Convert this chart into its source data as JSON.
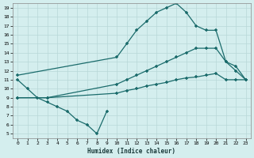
{
  "xlabel": "Humidex (Indice chaleur)",
  "bg_color": "#d4eeee",
  "grid_color": "#b8d8d8",
  "line_color": "#1a6b6b",
  "marker": "+",
  "xlim": [
    -0.5,
    23.5
  ],
  "ylim": [
    4.5,
    19.5
  ],
  "xticks": [
    0,
    1,
    2,
    3,
    4,
    5,
    6,
    7,
    8,
    9,
    10,
    11,
    12,
    13,
    14,
    15,
    16,
    17,
    18,
    19,
    20,
    21,
    22,
    23
  ],
  "yticks": [
    5,
    6,
    7,
    8,
    9,
    10,
    11,
    12,
    13,
    14,
    15,
    16,
    17,
    18,
    19
  ],
  "s1_x": [
    0,
    1,
    2,
    3,
    4,
    5,
    6,
    7,
    8,
    9
  ],
  "s1_y": [
    11.0,
    10.0,
    9.0,
    8.5,
    8.0,
    7.5,
    6.5,
    6.0,
    5.0,
    7.5
  ],
  "s2_x": [
    0,
    10,
    11,
    12,
    13,
    14,
    15,
    16,
    17,
    18,
    19,
    20,
    21,
    22,
    23
  ],
  "s2_y": [
    11.5,
    13.5,
    15.0,
    16.5,
    17.5,
    18.5,
    19.0,
    19.5,
    18.5,
    17.0,
    16.5,
    16.5,
    13.0,
    12.0,
    11.0
  ],
  "s3_x": [
    0,
    3,
    10,
    11,
    12,
    13,
    14,
    15,
    16,
    17,
    18,
    19,
    20,
    21,
    22,
    23
  ],
  "s3_y": [
    9.0,
    9.0,
    10.5,
    11.0,
    11.5,
    12.0,
    12.5,
    13.0,
    13.5,
    14.0,
    14.5,
    14.5,
    14.5,
    13.0,
    12.5,
    11.0
  ],
  "s4_x": [
    0,
    3,
    10,
    11,
    12,
    13,
    14,
    15,
    16,
    17,
    18,
    19,
    20,
    21,
    22,
    23
  ],
  "s4_y": [
    9.0,
    9.0,
    9.5,
    9.8,
    10.0,
    10.3,
    10.5,
    10.7,
    11.0,
    11.2,
    11.3,
    11.5,
    11.7,
    11.0,
    11.0,
    11.0
  ]
}
